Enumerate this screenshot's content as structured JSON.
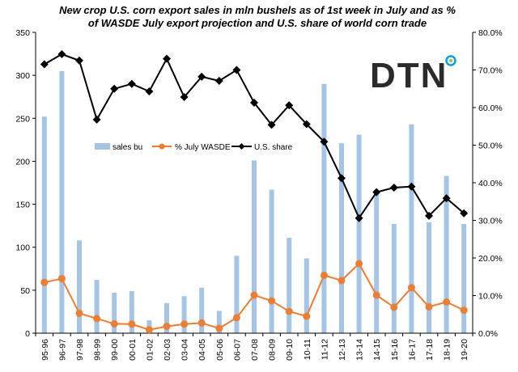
{
  "chart_data": {
    "type": "bar",
    "title_lines": [
      "New crop U.S. corn export sales in mln bushels as of 1st week in July and as %",
      "of WASDE  July export projection and U.S. share of world corn trade"
    ],
    "categories": [
      "95-96",
      "96-97",
      "97-98",
      "98-99",
      "99-00",
      "00-01",
      "01-02",
      "02-03",
      "03-04",
      "04-05",
      "05-06",
      "06-07",
      "07-08",
      "08-09",
      "09-10",
      "10-11",
      "11-12",
      "12-13",
      "13-14",
      "14-15",
      "15-16",
      "16-17",
      "17-18",
      "18-19",
      "19-20"
    ],
    "left_axis": {
      "ylim": [
        0,
        350
      ],
      "ticks": [
        "0",
        "50",
        "100",
        "150",
        "200",
        "250",
        "300",
        "350"
      ]
    },
    "right_axis": {
      "ylim": [
        0,
        80
      ],
      "ticks": [
        "0.0%",
        "10.0%",
        "20.0%",
        "30.0%",
        "40.0%",
        "50.0%",
        "60.0%",
        "70.0%",
        "80.0%"
      ]
    },
    "series": [
      {
        "name": "sales bu",
        "type": "bar",
        "axis": "left",
        "color": "#a6c4e6",
        "values": [
          252,
          305,
          108,
          62,
          47,
          49,
          15,
          35,
          43,
          53,
          26,
          90,
          201,
          167,
          111,
          87,
          290,
          221,
          231,
          165,
          127,
          243,
          129,
          183,
          127
        ]
      },
      {
        "name": "% July WASDE",
        "type": "line",
        "axis": "right",
        "color": "#ed7d31",
        "marker": "circle",
        "values": [
          13.5,
          14.5,
          5.3,
          3.9,
          2.5,
          2.4,
          0.9,
          1.8,
          2.4,
          2.7,
          1.3,
          4.1,
          10.1,
          8.6,
          5.8,
          4.5,
          15.4,
          14.0,
          18.5,
          10.1,
          6.9,
          12.1,
          7.0,
          8.3,
          6.1
        ]
      },
      {
        "name": "U.S. share",
        "type": "line",
        "axis": "right",
        "color": "#000000",
        "marker": "diamond",
        "values": [
          71.5,
          74.2,
          72.5,
          56.8,
          65.0,
          66.3,
          64.3,
          73.0,
          62.8,
          68.2,
          67.1,
          70.0,
          61.3,
          55.4,
          60.6,
          55.6,
          50.9,
          41.2,
          30.6,
          37.5,
          38.7,
          39.0,
          31.2,
          35.9,
          31.9
        ]
      }
    ],
    "legend": {
      "placement": "center-left",
      "entries": [
        "sales bu",
        "% July WASDE",
        "U.S. share"
      ]
    },
    "grid": false,
    "logo": {
      "text": "DTN",
      "accent_colors": [
        "#8dc63f",
        "#00a3e0"
      ]
    }
  }
}
